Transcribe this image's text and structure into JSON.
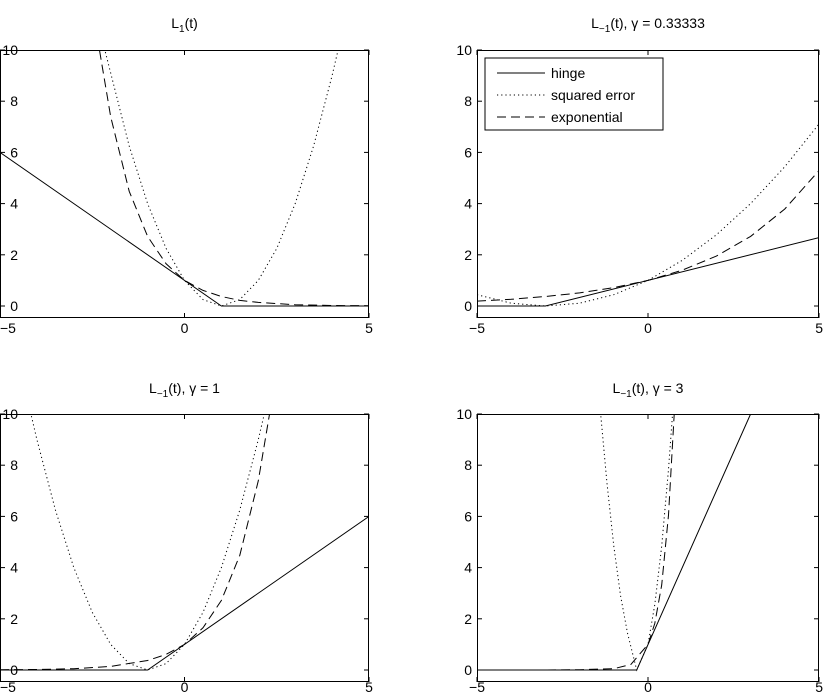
{
  "chart_data": [
    {
      "type": "line",
      "title_parts": {
        "main": "L",
        "sub": "1",
        "rest": "(t)"
      },
      "xlim": [
        -5,
        5
      ],
      "ylim": [
        0,
        10
      ],
      "xticks": [
        "−5",
        "0",
        "5"
      ],
      "yticks": [
        "0",
        "2",
        "4",
        "6",
        "8",
        "10"
      ],
      "grid": false,
      "series": [
        {
          "name": "hinge",
          "style": "solid",
          "x": [
            -5,
            1,
            5
          ],
          "y": [
            6,
            0,
            0
          ]
        },
        {
          "name": "squared error",
          "style": "dotted",
          "x": [
            -2.2,
            -1.5,
            -1,
            -0.5,
            0,
            0.5,
            1,
            1.5,
            2,
            2.5,
            3,
            3.5,
            4,
            4.2
          ],
          "y": [
            10.24,
            6.25,
            4,
            2.25,
            1,
            0.25,
            0,
            0.25,
            1,
            2.25,
            4,
            6.25,
            9,
            10.24
          ]
        },
        {
          "name": "exponential",
          "style": "dashed",
          "x": [
            -2.3,
            -2,
            -1.5,
            -1,
            -0.5,
            0,
            0.5,
            1,
            1.5,
            2,
            3,
            4,
            5
          ],
          "y": [
            9.97,
            7.39,
            4.48,
            2.72,
            1.65,
            1,
            0.61,
            0.37,
            0.22,
            0.14,
            0.05,
            0.02,
            0.01
          ]
        }
      ]
    },
    {
      "type": "line",
      "title_parts": {
        "main": "L",
        "sub": "−1",
        "rest": "(t), γ = 0.33333"
      },
      "xlim": [
        -5,
        5
      ],
      "ylim": [
        0,
        10
      ],
      "xticks": [
        "−5",
        "0",
        "5"
      ],
      "yticks": [
        "0",
        "2",
        "4",
        "6",
        "8",
        "10"
      ],
      "grid": false,
      "legend": {
        "position": "top-left",
        "entries": [
          "hinge",
          "squared error",
          "exponential"
        ]
      },
      "series": [
        {
          "name": "hinge",
          "style": "solid",
          "x": [
            -5,
            -3,
            5
          ],
          "y": [
            0,
            0,
            2.67
          ]
        },
        {
          "name": "squared error",
          "style": "dotted",
          "x": [
            -5,
            -4,
            -3,
            -2,
            -1,
            0,
            1,
            2,
            3,
            4,
            5
          ],
          "y": [
            0.44,
            0.11,
            0,
            0.11,
            0.44,
            1,
            1.78,
            2.78,
            4,
            5.44,
            7.11
          ]
        },
        {
          "name": "exponential",
          "style": "dashed",
          "x": [
            -5,
            -4,
            -3,
            -2,
            -1,
            0,
            1,
            2,
            3,
            4,
            5
          ],
          "y": [
            0.19,
            0.26,
            0.37,
            0.51,
            0.72,
            1,
            1.4,
            1.95,
            2.72,
            3.79,
            5.29
          ]
        }
      ]
    },
    {
      "type": "line",
      "title_parts": {
        "main": "L",
        "sub": "−1",
        "rest": "(t), γ = 1"
      },
      "xlim": [
        -5,
        5
      ],
      "ylim": [
        0,
        10
      ],
      "xticks": [
        "−5",
        "0",
        "5"
      ],
      "yticks": [
        "0",
        "2",
        "4",
        "6",
        "8",
        "10"
      ],
      "grid": false,
      "series": [
        {
          "name": "hinge",
          "style": "solid",
          "x": [
            -5,
            -1,
            5
          ],
          "y": [
            0,
            0,
            6
          ]
        },
        {
          "name": "squared error",
          "style": "dotted",
          "x": [
            -4.2,
            -4,
            -3.5,
            -3,
            -2.5,
            -2,
            -1.5,
            -1,
            -0.5,
            0,
            0.5,
            1,
            1.5,
            2,
            2.2
          ],
          "y": [
            10.24,
            9,
            6.25,
            4,
            2.25,
            1,
            0.25,
            0,
            0.25,
            1,
            2.25,
            4,
            6.25,
            9,
            10.24
          ]
        },
        {
          "name": "exponential",
          "style": "dashed",
          "x": [
            -5,
            -4,
            -3,
            -2,
            -1,
            -0.5,
            0,
            0.5,
            1,
            1.5,
            2,
            2.3
          ],
          "y": [
            0.01,
            0.02,
            0.05,
            0.14,
            0.37,
            0.61,
            1,
            1.65,
            2.72,
            4.48,
            7.39,
            9.97
          ]
        }
      ]
    },
    {
      "type": "line",
      "title_parts": {
        "main": "L",
        "sub": "−1",
        "rest": "(t), γ = 3"
      },
      "xlim": [
        -5,
        5
      ],
      "ylim": [
        0,
        10
      ],
      "xticks": [
        "−5",
        "0",
        "5"
      ],
      "yticks": [
        "0",
        "2",
        "4",
        "6",
        "8",
        "10"
      ],
      "grid": false,
      "series": [
        {
          "name": "hinge",
          "style": "solid",
          "x": [
            -5,
            -0.33,
            3
          ],
          "y": [
            0,
            0,
            10
          ]
        },
        {
          "name": "squared error",
          "style": "dotted",
          "x": [
            -1.4,
            -1.2,
            -1,
            -0.8,
            -0.6,
            -0.33,
            0,
            0.2,
            0.4,
            0.6,
            0.73
          ],
          "y": [
            10.24,
            7.29,
            4.84,
            2.89,
            1.44,
            0,
            1,
            2.56,
            4.84,
            7.84,
            10.24
          ]
        },
        {
          "name": "exponential",
          "style": "dashed",
          "x": [
            -5,
            -3,
            -2,
            -1,
            -0.5,
            0,
            0.2,
            0.4,
            0.6,
            0.77
          ],
          "y": [
            0,
            0,
            0.01,
            0.05,
            0.22,
            1,
            1.82,
            3.32,
            6.05,
            10.06
          ]
        }
      ]
    }
  ]
}
